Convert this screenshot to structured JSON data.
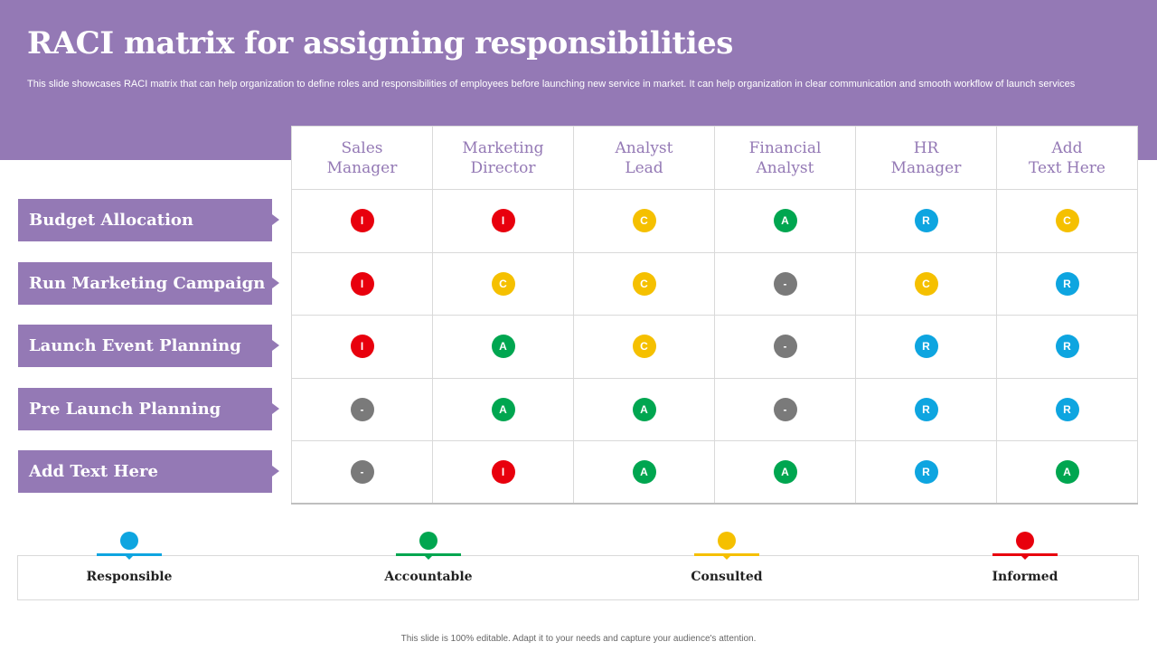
{
  "title": "RACI matrix for assigning responsibilities",
  "subtitle": "This slide showcases RACI matrix that can help organization to define roles and responsibilities of employees before launching new service in market. It can help organization in clear communication and smooth workflow of launch services",
  "columns": [
    "Sales\nManager",
    "Marketing\nDirector",
    "Analyst\nLead",
    "Financial\nAnalyst",
    "HR\nManager",
    "Add\nText Here"
  ],
  "rows": [
    {
      "label": "Budget Allocation",
      "cells": [
        "I",
        "I",
        "C",
        "A",
        "R",
        "C"
      ]
    },
    {
      "label": "Run Marketing Campaign",
      "cells": [
        "I",
        "C",
        "C",
        "-",
        "C",
        "R"
      ]
    },
    {
      "label": "Launch Event Planning",
      "cells": [
        "I",
        "A",
        "C",
        "-",
        "R",
        "R"
      ]
    },
    {
      "label": "Pre Launch Planning",
      "cells": [
        "-",
        "A",
        "A",
        "-",
        "R",
        "R"
      ]
    },
    {
      "label": "Add Text Here",
      "cells": [
        "-",
        "I",
        "A",
        "A",
        "R",
        "A"
      ]
    }
  ],
  "colors": {
    "R": "#0ea5e0",
    "A": "#00a650",
    "C": "#f5c000",
    "I": "#e8000d",
    "-": "#7a7a7a",
    "accent": "#9479b5"
  },
  "legend": [
    {
      "label": "Responsible",
      "color": "#0ea5e0"
    },
    {
      "label": "Accountable",
      "color": "#00a650"
    },
    {
      "label": "Consulted",
      "color": "#f5c000"
    },
    {
      "label": "Informed",
      "color": "#e8000d"
    }
  ],
  "footer": "This slide is 100% editable. Adapt it to your needs and capture your audience's attention."
}
